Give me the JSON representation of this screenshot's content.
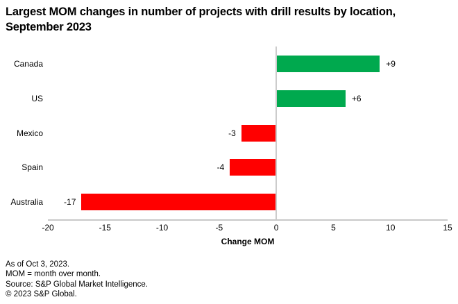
{
  "title_lines": [
    "Largest MOM changes in number of projects with drill results by location,",
    "September 2023"
  ],
  "chart_data": {
    "type": "bar",
    "orientation": "horizontal",
    "categories": [
      "Canada",
      "US",
      "Mexico",
      "Spain",
      "Australia"
    ],
    "values": [
      9,
      6,
      -3,
      -4,
      -17
    ],
    "value_labels": [
      "+9",
      "+6",
      "-3",
      "-4",
      "-17"
    ],
    "title": "Largest MOM changes in number of projects with drill results by location, September 2023",
    "xlabel": "Change MOM",
    "ylabel": "",
    "xlim": [
      -20,
      15
    ],
    "xticks": [
      -20,
      -15,
      -10,
      -5,
      0,
      5,
      10,
      15
    ],
    "grid": false,
    "legend": "none",
    "positive_color": "#00A94E",
    "negative_color": "#FF0000",
    "axis_color": "#C9C9C9",
    "text_color": "#000000"
  },
  "footer": {
    "lines": [
      "As of Oct 3, 2023.",
      "MOM = month over month.",
      "Source: S&P Global Market Intelligence.",
      "© 2023 S&P Global."
    ]
  }
}
